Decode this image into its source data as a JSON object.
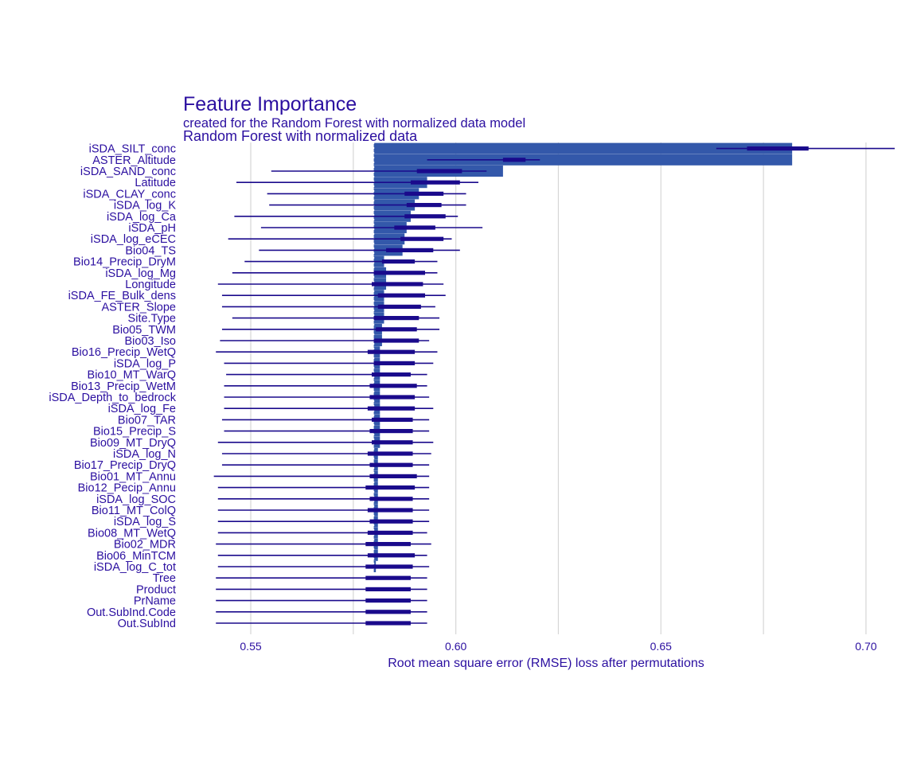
{
  "chart_data": {
    "type": "bar",
    "title": "Feature Importance",
    "subtitle": "created for the Random Forest with normalized data model",
    "facet_label": "Random Forest with normalized data",
    "xlabel": "Root mean square error (RMSE) loss after permutations",
    "ylabel": "",
    "xlim": [
      0.5335,
      0.7105
    ],
    "x_ticks": [
      0.55,
      0.6,
      0.65,
      0.7
    ],
    "x_tick_labels": [
      "0.55",
      "0.60",
      "0.65",
      "0.70"
    ],
    "baseline": 0.58,
    "grid": true,
    "legend": "none",
    "colors": {
      "bar": "#3358aa",
      "whisker": "#1a0a8c",
      "text": "#2b0fa0",
      "grid": "#d6d6d6"
    },
    "features": [
      {
        "name": "iSDA_SILT_conc",
        "value": 0.682,
        "min": 0.6635,
        "q1": 0.671,
        "q3": 0.686,
        "max": 0.707
      },
      {
        "name": "ASTER_Altitude",
        "value": 0.682,
        "min": 0.593,
        "q1": 0.6115,
        "q3": 0.617,
        "max": 0.6205
      },
      {
        "name": "iSDA_SAND_conc",
        "value": 0.6115,
        "min": 0.555,
        "q1": 0.5905,
        "q3": 0.6015,
        "max": 0.6075
      },
      {
        "name": "Latitude",
        "value": 0.593,
        "min": 0.5465,
        "q1": 0.589,
        "q3": 0.601,
        "max": 0.6055
      },
      {
        "name": "iSDA_CLAY_conc",
        "value": 0.591,
        "min": 0.554,
        "q1": 0.5875,
        "q3": 0.597,
        "max": 0.6025
      },
      {
        "name": "iSDA_log_K",
        "value": 0.59,
        "min": 0.5545,
        "q1": 0.588,
        "q3": 0.5965,
        "max": 0.6025
      },
      {
        "name": "iSDA_log_Ca",
        "value": 0.589,
        "min": 0.546,
        "q1": 0.5875,
        "q3": 0.5975,
        "max": 0.6005
      },
      {
        "name": "iSDA_pH",
        "value": 0.588,
        "min": 0.5525,
        "q1": 0.585,
        "q3": 0.595,
        "max": 0.6065
      },
      {
        "name": "iSDA_log_eCEC",
        "value": 0.5875,
        "min": 0.5445,
        "q1": 0.5865,
        "q3": 0.597,
        "max": 0.599
      },
      {
        "name": "Bio04_TS",
        "value": 0.587,
        "min": 0.552,
        "q1": 0.583,
        "q3": 0.5945,
        "max": 0.601
      },
      {
        "name": "Bio14_Precip_DryM",
        "value": 0.5825,
        "min": 0.5485,
        "q1": 0.582,
        "q3": 0.59,
        "max": 0.5955
      },
      {
        "name": "iSDA_log_Mg",
        "value": 0.583,
        "min": 0.5455,
        "q1": 0.58,
        "q3": 0.5925,
        "max": 0.5955
      },
      {
        "name": "Longitude",
        "value": 0.583,
        "min": 0.542,
        "q1": 0.5795,
        "q3": 0.592,
        "max": 0.597
      },
      {
        "name": "iSDA_FE_Bulk_dens",
        "value": 0.5825,
        "min": 0.543,
        "q1": 0.581,
        "q3": 0.5925,
        "max": 0.5975
      },
      {
        "name": "ASTER_Slope",
        "value": 0.5825,
        "min": 0.543,
        "q1": 0.581,
        "q3": 0.5915,
        "max": 0.595
      },
      {
        "name": "Site.Type",
        "value": 0.5825,
        "min": 0.5455,
        "q1": 0.58,
        "q3": 0.591,
        "max": 0.596
      },
      {
        "name": "Bio05_TWM",
        "value": 0.582,
        "min": 0.543,
        "q1": 0.5805,
        "q3": 0.5905,
        "max": 0.596
      },
      {
        "name": "Bio03_Iso",
        "value": 0.582,
        "min": 0.5425,
        "q1": 0.58,
        "q3": 0.591,
        "max": 0.5935
      },
      {
        "name": "Bio16_Precip_WetQ",
        "value": 0.5815,
        "min": 0.5415,
        "q1": 0.5785,
        "q3": 0.59,
        "max": 0.5955
      },
      {
        "name": "iSDA_log_P",
        "value": 0.5815,
        "min": 0.5435,
        "q1": 0.58,
        "q3": 0.59,
        "max": 0.5945
      },
      {
        "name": "Bio10_MT_WarQ",
        "value": 0.5815,
        "min": 0.544,
        "q1": 0.5795,
        "q3": 0.589,
        "max": 0.593
      },
      {
        "name": "Bio13_Precip_WetM",
        "value": 0.5815,
        "min": 0.5435,
        "q1": 0.579,
        "q3": 0.5905,
        "max": 0.593
      },
      {
        "name": "iSDA_Depth_to_bedrock",
        "value": 0.5815,
        "min": 0.5435,
        "q1": 0.579,
        "q3": 0.59,
        "max": 0.5935
      },
      {
        "name": "iSDA_log_Fe",
        "value": 0.5815,
        "min": 0.5435,
        "q1": 0.5785,
        "q3": 0.59,
        "max": 0.5945
      },
      {
        "name": "Bio07_TAR",
        "value": 0.5815,
        "min": 0.543,
        "q1": 0.5795,
        "q3": 0.5895,
        "max": 0.5935
      },
      {
        "name": "Bio15_Precip_S",
        "value": 0.5815,
        "min": 0.5435,
        "q1": 0.579,
        "q3": 0.5895,
        "max": 0.5935
      },
      {
        "name": "Bio09_MT_DryQ",
        "value": 0.5815,
        "min": 0.542,
        "q1": 0.5795,
        "q3": 0.5895,
        "max": 0.5945
      },
      {
        "name": "iSDA_log_N",
        "value": 0.581,
        "min": 0.543,
        "q1": 0.5785,
        "q3": 0.5895,
        "max": 0.594
      },
      {
        "name": "Bio17_Precip_DryQ",
        "value": 0.581,
        "min": 0.543,
        "q1": 0.579,
        "q3": 0.5895,
        "max": 0.5935
      },
      {
        "name": "Bio01_MT_Annu",
        "value": 0.581,
        "min": 0.541,
        "q1": 0.579,
        "q3": 0.5905,
        "max": 0.5935
      },
      {
        "name": "Bio12_Pecip_Annu",
        "value": 0.581,
        "min": 0.542,
        "q1": 0.578,
        "q3": 0.59,
        "max": 0.5935
      },
      {
        "name": "iSDA_log_SOC",
        "value": 0.581,
        "min": 0.542,
        "q1": 0.579,
        "q3": 0.5895,
        "max": 0.5935
      },
      {
        "name": "Bio11_MT_ColQ",
        "value": 0.581,
        "min": 0.542,
        "q1": 0.5785,
        "q3": 0.5895,
        "max": 0.5935
      },
      {
        "name": "iSDA_log_S",
        "value": 0.581,
        "min": 0.542,
        "q1": 0.579,
        "q3": 0.5895,
        "max": 0.5935
      },
      {
        "name": "Bio08_MT_WetQ",
        "value": 0.581,
        "min": 0.542,
        "q1": 0.5785,
        "q3": 0.5895,
        "max": 0.593
      },
      {
        "name": "Bio02_MDR",
        "value": 0.581,
        "min": 0.5415,
        "q1": 0.578,
        "q3": 0.589,
        "max": 0.594
      },
      {
        "name": "Bio06_MinTCM",
        "value": 0.581,
        "min": 0.542,
        "q1": 0.5785,
        "q3": 0.59,
        "max": 0.593
      },
      {
        "name": "iSDA_log_C_tot",
        "value": 0.5805,
        "min": 0.542,
        "q1": 0.578,
        "q3": 0.5895,
        "max": 0.5935
      },
      {
        "name": "Tree",
        "value": 0.58,
        "min": 0.5415,
        "q1": 0.578,
        "q3": 0.589,
        "max": 0.593
      },
      {
        "name": "Product",
        "value": 0.58,
        "min": 0.5415,
        "q1": 0.578,
        "q3": 0.589,
        "max": 0.593
      },
      {
        "name": "PrName",
        "value": 0.58,
        "min": 0.5415,
        "q1": 0.578,
        "q3": 0.589,
        "max": 0.593
      },
      {
        "name": "Out.SubInd.Code",
        "value": 0.58,
        "min": 0.5415,
        "q1": 0.578,
        "q3": 0.589,
        "max": 0.593
      },
      {
        "name": "Out.SubInd",
        "value": 0.58,
        "min": 0.5415,
        "q1": 0.578,
        "q3": 0.589,
        "max": 0.593
      }
    ]
  }
}
